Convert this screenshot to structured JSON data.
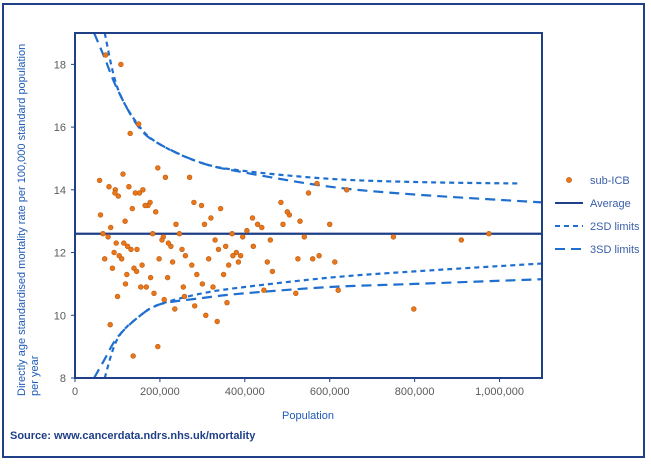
{
  "source_note": "Source: www.cancerdata.ndrs.nhs.uk/mortality",
  "chart_data": {
    "type": "scatter",
    "title": "",
    "xlabel": "Population",
    "ylabel": "Directly age standardised mortality rate per 100,000 standard population per year",
    "xlim": [
      0,
      1100000
    ],
    "ylim": [
      8,
      19
    ],
    "x_ticks": [
      0,
      200000,
      400000,
      600000,
      800000,
      1000000
    ],
    "x_tick_labels": [
      "0",
      "200,000",
      "400,000",
      "600,000",
      "800,000",
      "1,000,000"
    ],
    "y_ticks": [
      8,
      10,
      12,
      14,
      16,
      18
    ],
    "y_tick_labels": [
      "8",
      "10",
      "12",
      "14",
      "16",
      "18"
    ],
    "legend_position": "right",
    "colors": {
      "points": "#e8761b",
      "point_stroke": "#c25a0a",
      "average": "#1f3f87",
      "limits": "#1f6fd0",
      "frame": "#1f3f87"
    },
    "series": [
      {
        "name": "sub-ICB",
        "kind": "points",
        "x": [
          72000,
          97000,
          108000,
          130000,
          150000,
          60000,
          80000,
          95000,
          113000,
          127000,
          142000,
          160000,
          177000,
          195000,
          213000,
          238000,
          270000,
          298000,
          320000,
          343000,
          370000,
          395000,
          418000,
          440000,
          460000,
          485000,
          505000,
          530000,
          550000,
          570000,
          600000,
          640000,
          66000,
          84000,
          102000,
          118000,
          135000,
          152000,
          172000,
          190000,
          208000,
          226000,
          252000,
          280000,
          305000,
          330000,
          355000,
          380000,
          405000,
          430000,
          465000,
          500000,
          540000,
          575000,
          58000,
          78000,
          94000,
          110000,
          124000,
          146000,
          165000,
          183000,
          205000,
          230000,
          260000,
          287000,
          315000,
          338000,
          362000,
          390000,
          420000,
          453000,
          490000,
          525000,
          560000,
          612000,
          88000,
          104000,
          122000,
          139000,
          158000,
          178000,
          198000,
          220000,
          246000,
          275000,
          300000,
          325000,
          350000,
          372000,
          750000,
          798000,
          910000,
          975000,
          70000,
          92000,
          115000,
          132000,
          145000,
          168000,
          186000,
          210000,
          235000,
          258000,
          282000,
          308000,
          335000,
          358000,
          385000,
          445000,
          520000,
          620000,
          83000,
          100000,
          119000,
          137000,
          155000,
          195000,
          218000,
          255000
        ],
        "y": [
          18.3,
          12.3,
          18.0,
          15.8,
          16.1,
          13.2,
          14.1,
          14.0,
          14.5,
          14.1,
          13.9,
          14.0,
          13.6,
          14.7,
          14.4,
          12.9,
          14.4,
          13.5,
          13.1,
          13.4,
          12.6,
          12.5,
          13.1,
          12.8,
          12.4,
          13.6,
          13.2,
          13.0,
          13.9,
          14.2,
          12.9,
          14.0,
          12.6,
          12.8,
          13.8,
          13.0,
          13.4,
          13.9,
          13.5,
          13.3,
          12.5,
          12.2,
          12.1,
          13.6,
          12.9,
          12.4,
          12.2,
          12.0,
          12.7,
          12.9,
          11.4,
          13.3,
          12.5,
          11.9,
          14.3,
          12.5,
          13.9,
          11.8,
          12.2,
          12.1,
          13.5,
          12.6,
          12.4,
          11.7,
          11.9,
          11.3,
          11.8,
          12.1,
          11.6,
          11.9,
          12.2,
          11.7,
          12.9,
          11.8,
          11.8,
          11.7,
          11.5,
          11.9,
          11.3,
          11.5,
          11.6,
          11.2,
          11.8,
          12.3,
          12.6,
          11.6,
          11.0,
          10.9,
          11.3,
          11.9,
          12.5,
          10.2,
          12.4,
          12.6,
          11.8,
          12.0,
          12.3,
          12.1,
          11.4,
          10.9,
          10.7,
          10.5,
          10.2,
          10.6,
          10.3,
          10.0,
          9.8,
          10.4,
          11.7,
          10.8,
          10.7,
          10.8,
          9.7,
          10.6,
          11.0,
          8.7,
          10.9,
          9.0,
          11.2,
          10.9
        ]
      },
      {
        "name": "Average",
        "kind": "hline",
        "value": 12.6
      },
      {
        "name": "2SD limits",
        "kind": "funnel",
        "upper": [
          [
            70000,
            19.0
          ],
          [
            100000,
            17.25
          ],
          [
            150000,
            16.05
          ],
          [
            200000,
            15.45
          ],
          [
            300000,
            14.85
          ],
          [
            400000,
            14.6
          ],
          [
            600000,
            14.35
          ],
          [
            800000,
            14.25
          ],
          [
            1050000,
            14.2
          ]
        ],
        "lower": [
          [
            70000,
            8.0
          ],
          [
            100000,
            9.25
          ],
          [
            150000,
            9.95
          ],
          [
            200000,
            10.35
          ],
          [
            300000,
            10.7
          ],
          [
            400000,
            10.9
          ],
          [
            600000,
            11.2
          ],
          [
            800000,
            11.4
          ],
          [
            1100000,
            11.65
          ]
        ]
      },
      {
        "name": "3SD limits",
        "kind": "funnel",
        "upper": [
          [
            45000,
            19.0
          ],
          [
            70000,
            18.2
          ],
          [
            100000,
            17.2
          ],
          [
            150000,
            16.0
          ],
          [
            200000,
            15.45
          ],
          [
            300000,
            14.85
          ],
          [
            400000,
            14.55
          ],
          [
            600000,
            14.1
          ],
          [
            800000,
            13.85
          ],
          [
            1100000,
            13.6
          ]
        ],
        "lower": [
          [
            45000,
            8.0
          ],
          [
            70000,
            8.6
          ],
          [
            100000,
            9.3
          ],
          [
            150000,
            9.95
          ],
          [
            200000,
            10.35
          ],
          [
            300000,
            10.55
          ],
          [
            400000,
            10.7
          ],
          [
            600000,
            10.9
          ],
          [
            800000,
            11.0
          ],
          [
            1100000,
            11.15
          ]
        ]
      }
    ]
  }
}
